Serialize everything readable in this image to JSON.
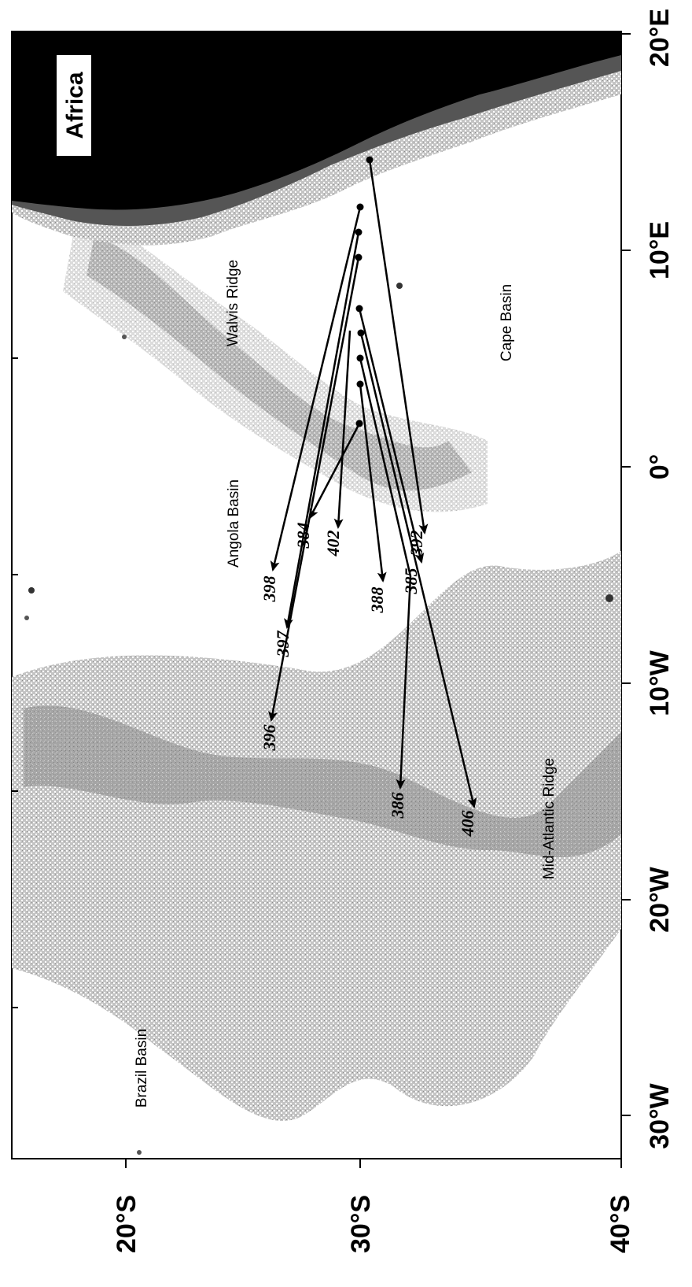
{
  "map": {
    "title": "",
    "longitude_range": [
      "30°W",
      "20°E"
    ],
    "latitude_range": [
      "20°S",
      "40°S"
    ],
    "longitude_ticks": [
      "30°W",
      "20°W",
      "10°W",
      "0°",
      "10°E",
      "20°E"
    ],
    "latitude_ticks": [
      "20°S",
      "30°S",
      "40°S"
    ],
    "regions": {
      "africa": "Africa",
      "walvis_ridge": "Walvis Ridge",
      "cape_basin": "Cape Basin",
      "angola_basin": "Angola Basin",
      "brazil_basin": "Brazil Basin",
      "mid_atlantic_ridge": "Mid-Atlantic Ridge"
    },
    "colors": {
      "land": "#000000",
      "shelf": "#555555",
      "slope": "#8a8a8a",
      "ridge": "#a9a9a9",
      "ocean": "#ffffff",
      "track": "#000000"
    },
    "floats": [
      {
        "id": "398"
      },
      {
        "id": "397"
      },
      {
        "id": "396"
      },
      {
        "id": "384"
      },
      {
        "id": "402"
      },
      {
        "id": "388"
      },
      {
        "id": "385"
      },
      {
        "id": "392"
      },
      {
        "id": "386"
      },
      {
        "id": "406"
      }
    ]
  }
}
